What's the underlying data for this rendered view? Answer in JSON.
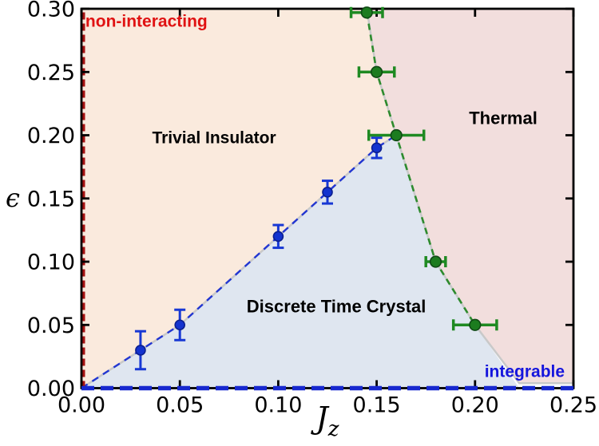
{
  "chart_data": {
    "type": "scatter",
    "title": "",
    "xlabel": "J_z",
    "xlabel_main": "J",
    "xlabel_sub": "z",
    "ylabel": "ϵ",
    "xlim": [
      0,
      0.25
    ],
    "ylim": [
      0,
      0.3
    ],
    "xticks": [
      "0.00",
      "0.05",
      "0.10",
      "0.15",
      "0.20",
      "0.25"
    ],
    "yticks": [
      "0.00",
      "0.05",
      "0.10",
      "0.15",
      "0.20",
      "0.25",
      "0.30"
    ],
    "grid": false,
    "legend": "none",
    "regions": [
      {
        "name": "Trivial Insulator",
        "color": "#faeadd",
        "points": [
          [
            0,
            0
          ],
          [
            0.03,
            0.03
          ],
          [
            0.05,
            0.05
          ],
          [
            0.1,
            0.12
          ],
          [
            0.125,
            0.155
          ],
          [
            0.15,
            0.19
          ],
          [
            0.16,
            0.2
          ],
          [
            0.15,
            0.25
          ],
          [
            0.145,
            0.3
          ],
          [
            0,
            0.3
          ]
        ]
      },
      {
        "name": "Thermal",
        "color": "#f2dedd",
        "points": [
          [
            0.145,
            0.3
          ],
          [
            0.15,
            0.25
          ],
          [
            0.16,
            0.2
          ],
          [
            0.18,
            0.1
          ],
          [
            0.2,
            0.05
          ],
          [
            0.2225,
            0.004
          ],
          [
            0.25,
            0.004
          ],
          [
            0.25,
            0.3
          ]
        ]
      },
      {
        "name": "Discrete Time Crystal",
        "color": "#dfe6f0",
        "points": [
          [
            0,
            0
          ],
          [
            0.03,
            0.03
          ],
          [
            0.05,
            0.05
          ],
          [
            0.1,
            0.12
          ],
          [
            0.125,
            0.155
          ],
          [
            0.15,
            0.19
          ],
          [
            0.16,
            0.2
          ],
          [
            0.18,
            0.1
          ],
          [
            0.2,
            0.05
          ],
          [
            0.2225,
            0
          ]
        ]
      }
    ],
    "series": [
      {
        "name": "dtc-trivial boundary points",
        "color": "#1838d4",
        "marker_fill": "#1433cf",
        "marker_edge": "#0c1f8f",
        "marker_r": 6,
        "error": "y",
        "points": [
          {
            "x": 0.03,
            "y": 0.03,
            "err": 0.015
          },
          {
            "x": 0.05,
            "y": 0.05,
            "err": 0.012
          },
          {
            "x": 0.1,
            "y": 0.12,
            "err": 0.009
          },
          {
            "x": 0.125,
            "y": 0.155,
            "err": 0.009
          },
          {
            "x": 0.15,
            "y": 0.19,
            "err": 0.008
          }
        ]
      },
      {
        "name": "thermal boundary points",
        "color": "#1f8a22",
        "marker_fill": "#1c7c1f",
        "marker_edge": "#0f4a14",
        "marker_r": 6.8,
        "error": "x",
        "points": [
          {
            "x": 0.145,
            "y": 0.297,
            "err": 0.008
          },
          {
            "x": 0.15,
            "y": 0.25,
            "err": 0.009
          },
          {
            "x": 0.16,
            "y": 0.2,
            "err": 0.014
          },
          {
            "x": 0.18,
            "y": 0.1,
            "err": 0.005
          },
          {
            "x": 0.2,
            "y": 0.05,
            "err": 0.011
          }
        ]
      }
    ],
    "lines": [
      {
        "name": "gray-boundary-left",
        "color": "#c9c9c9",
        "width": 2.5,
        "dash": "",
        "layer": "under",
        "points": [
          [
            0,
            0
          ],
          [
            0.03,
            0.03
          ],
          [
            0.05,
            0.05
          ],
          [
            0.1,
            0.12
          ],
          [
            0.125,
            0.155
          ],
          [
            0.15,
            0.19
          ],
          [
            0.16,
            0.2
          ]
        ]
      },
      {
        "name": "gray-boundary-right",
        "color": "#c9c9c9",
        "width": 2.5,
        "dash": "",
        "layer": "under",
        "points": [
          [
            0.145,
            0.3
          ],
          [
            0.15,
            0.25
          ],
          [
            0.16,
            0.2
          ],
          [
            0.18,
            0.1
          ],
          [
            0.2,
            0.05
          ],
          [
            0.2225,
            0.004
          ],
          [
            0.25,
            0.004
          ]
        ]
      },
      {
        "name": "dtc-trivial-boundary",
        "color": "#2236d2",
        "width": 2.4,
        "dash": "9,7",
        "layer": "under",
        "points": [
          [
            0,
            0
          ],
          [
            0.03,
            0.03
          ],
          [
            0.05,
            0.05
          ],
          [
            0.1,
            0.12
          ],
          [
            0.125,
            0.155
          ],
          [
            0.15,
            0.19
          ],
          [
            0.16,
            0.2
          ]
        ]
      },
      {
        "name": "thermal-boundary",
        "color": "#2e8b2e",
        "width": 2.6,
        "dash": "8,6",
        "layer": "under",
        "points": [
          [
            0.145,
            0.297
          ],
          [
            0.15,
            0.25
          ],
          [
            0.16,
            0.2
          ],
          [
            0.18,
            0.1
          ],
          [
            0.2,
            0.05
          ]
        ]
      },
      {
        "name": "non-interacting-line",
        "color": "#a51212",
        "width": 4,
        "dash": "9,5",
        "layer": "under",
        "points": [
          [
            0.001,
            0
          ],
          [
            0.001,
            0.3
          ]
        ]
      },
      {
        "name": "integrable-line",
        "color": "#1728cf",
        "width": 5.5,
        "dash": "16,8",
        "layer": "over",
        "points": [
          [
            0,
            0
          ],
          [
            0.25,
            0
          ]
        ]
      }
    ],
    "annotations": [
      {
        "text": "non-interacting",
        "color": "#e01212",
        "x": 0.002,
        "y": 0.2905,
        "anchor": "start",
        "size": 21
      },
      {
        "text": "Trivial Insulator",
        "color": "#000000",
        "x": 0.0674,
        "y": 0.1984,
        "anchor": "middle",
        "size": 21
      },
      {
        "text": "Thermal",
        "color": "#000000",
        "x": 0.2143,
        "y": 0.2136,
        "anchor": "middle",
        "size": 22
      },
      {
        "text": "Discrete Time Crystal",
        "color": "#000000",
        "x": 0.1295,
        "y": 0.0647,
        "anchor": "middle",
        "size": 22
      },
      {
        "text": "integrable",
        "color": "#1515dd",
        "x": 0.2252,
        "y": 0.0136,
        "anchor": "middle",
        "size": 21
      }
    ],
    "axis": {
      "frame_color": "#000000",
      "frame_width": 2.8,
      "tick_len": 10,
      "tick_width": 2.8,
      "tick_font_size": 27,
      "tick_color": "#000000"
    }
  }
}
